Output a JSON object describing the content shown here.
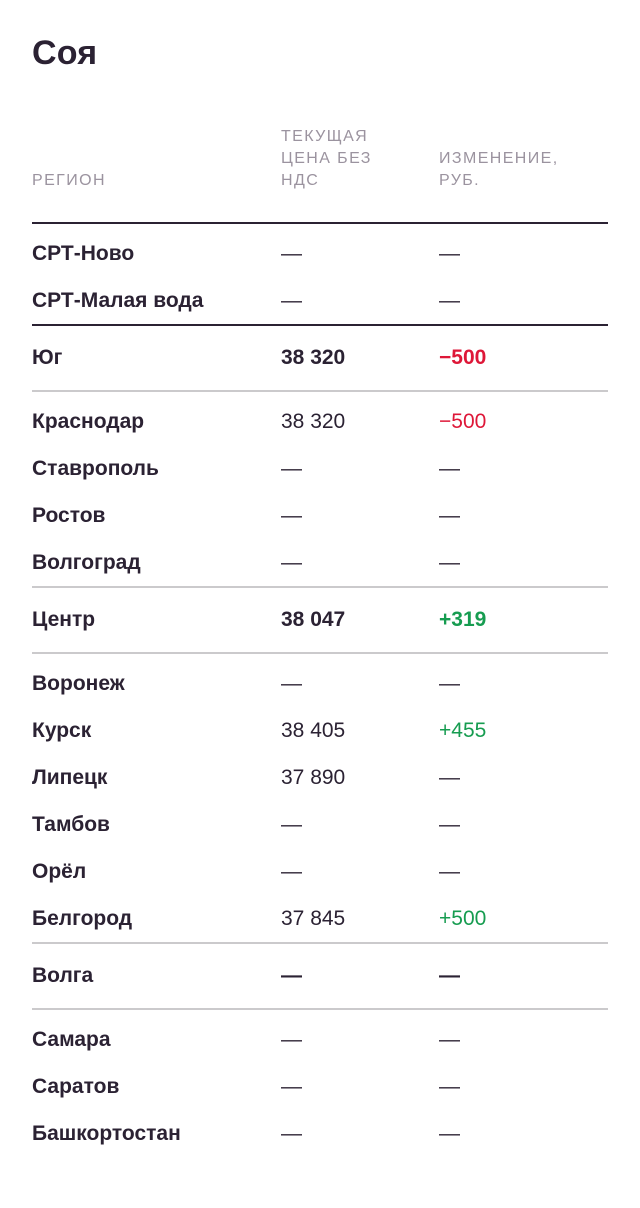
{
  "page_title": "Соя",
  "colors": {
    "text_dark": "#2B2233",
    "header_gray": "#9B939F",
    "divider_light": "#CBCACC",
    "divider_heavy": "#2B2233",
    "negative_red": "#DE1738",
    "positive_green": "#169C50"
  },
  "chart_data": {
    "type": "table",
    "title": "Соя",
    "columns": [
      "РЕГИОН",
      "ТЕКУЩАЯ ЦЕНА БЕЗ НДС",
      "ИЗМЕНЕНИЕ, РУБ."
    ],
    "rows": [
      {
        "kind": "city",
        "region": "СРТ-Ново",
        "price": "—",
        "change": "—",
        "change_color": "default"
      },
      {
        "kind": "city",
        "region": "СРТ-Малая вода",
        "price": "—",
        "change": "—",
        "change_color": "default"
      },
      {
        "kind": "section",
        "region": "Юг",
        "price": "38 320",
        "change": "−500",
        "change_color": "red",
        "divider_before": "heavy",
        "divider_after": "light"
      },
      {
        "kind": "city",
        "region": "Краснодар",
        "price": "38 320",
        "change": "−500",
        "change_color": "red"
      },
      {
        "kind": "city",
        "region": "Ставрополь",
        "price": "—",
        "change": "—",
        "change_color": "default"
      },
      {
        "kind": "city",
        "region": "Ростов",
        "price": "—",
        "change": "—",
        "change_color": "default"
      },
      {
        "kind": "city",
        "region": "Волгоград",
        "price": "—",
        "change": "—",
        "change_color": "default"
      },
      {
        "kind": "section",
        "region": "Центр",
        "price": "38 047",
        "change": "+319",
        "change_color": "green",
        "divider_before": "light",
        "divider_after": "light"
      },
      {
        "kind": "city",
        "region": "Воронеж",
        "price": "—",
        "change": "—",
        "change_color": "default"
      },
      {
        "kind": "city",
        "region": "Курск",
        "price": "38 405",
        "change": "+455",
        "change_color": "green"
      },
      {
        "kind": "city",
        "region": "Липецк",
        "price": "37 890",
        "change": "—",
        "change_color": "default"
      },
      {
        "kind": "city",
        "region": "Тамбов",
        "price": "—",
        "change": "—",
        "change_color": "default"
      },
      {
        "kind": "city",
        "region": "Орёл",
        "price": "—",
        "change": "—",
        "change_color": "default"
      },
      {
        "kind": "city",
        "region": "Белгород",
        "price": "37 845",
        "change": "+500",
        "change_color": "green"
      },
      {
        "kind": "section",
        "region": "Волга",
        "price": "—",
        "change": "—",
        "change_color": "default",
        "divider_before": "light",
        "divider_after": "light"
      },
      {
        "kind": "city",
        "region": "Самара",
        "price": "—",
        "change": "—",
        "change_color": "default"
      },
      {
        "kind": "city",
        "region": "Саратов",
        "price": "—",
        "change": "—",
        "change_color": "default"
      },
      {
        "kind": "city",
        "region": "Башкортостан",
        "price": "—",
        "change": "—",
        "change_color": "default"
      }
    ]
  }
}
